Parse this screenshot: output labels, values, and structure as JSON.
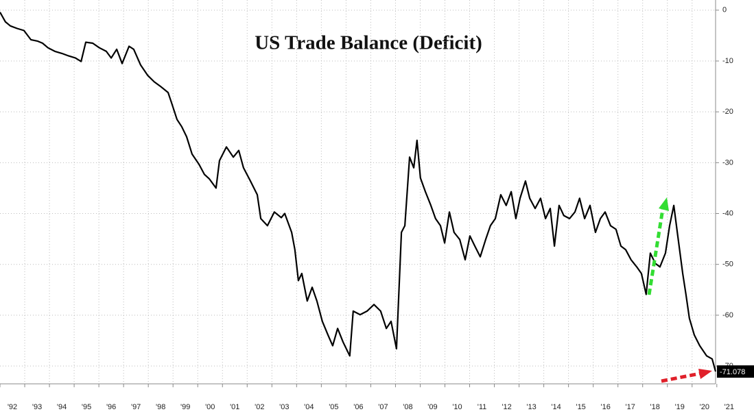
{
  "chart_data": {
    "type": "line",
    "title": "US Trade Balance (Deficit)",
    "x": [
      1992.0,
      1992.22,
      1992.42,
      1992.69,
      1992.97,
      1993.25,
      1993.53,
      1993.72,
      1993.94,
      1994.22,
      1994.5,
      1994.78,
      1995.05,
      1995.28,
      1995.47,
      1995.75,
      1996.02,
      1996.3,
      1996.5,
      1996.72,
      1996.94,
      1997.22,
      1997.41,
      1997.69,
      1997.97,
      1998.24,
      1998.52,
      1998.8,
      1998.94,
      1999.16,
      1999.35,
      1999.55,
      1999.77,
      2000.05,
      2000.27,
      2000.47,
      2000.74,
      2000.88,
      2001.16,
      2001.44,
      2001.66,
      2001.85,
      2002.13,
      2002.41,
      2002.55,
      2002.82,
      2003.1,
      2003.38,
      2003.52,
      2003.8,
      2003.93,
      2004.07,
      2004.21,
      2004.43,
      2004.63,
      2004.82,
      2005.04,
      2005.27,
      2005.46,
      2005.66,
      2005.88,
      2006.15,
      2006.29,
      2006.57,
      2006.85,
      2007.13,
      2007.4,
      2007.63,
      2007.82,
      2008.04,
      2008.24,
      2008.38,
      2008.57,
      2008.74,
      2008.87,
      2009.01,
      2009.21,
      2009.43,
      2009.62,
      2009.82,
      2009.99,
      2010.18,
      2010.37,
      2010.6,
      2010.82,
      2011.01,
      2011.21,
      2011.43,
      2011.65,
      2011.84,
      2012.04,
      2012.26,
      2012.48,
      2012.68,
      2012.87,
      2013.04,
      2013.26,
      2013.43,
      2013.65,
      2013.87,
      2014.07,
      2014.26,
      2014.43,
      2014.62,
      2014.81,
      2015.04,
      2015.26,
      2015.45,
      2015.65,
      2015.87,
      2016.09,
      2016.29,
      2016.48,
      2016.7,
      2016.92,
      2017.12,
      2017.31,
      2017.53,
      2017.76,
      2017.95,
      2018.14,
      2018.31,
      2018.51,
      2018.7,
      2018.92,
      2019.09,
      2019.26,
      2019.42,
      2019.62,
      2019.75,
      2019.89,
      2020.09,
      2020.31,
      2020.59,
      2020.81,
      2020.95
    ],
    "series": [
      {
        "color": "#000000",
        "values": [
          -0.4,
          -2.3,
          -3.1,
          -3.6,
          -4.0,
          -5.8,
          -6.1,
          -6.5,
          -7.4,
          -8.1,
          -8.5,
          -9.0,
          -9.4,
          -10.1,
          -6.3,
          -6.5,
          -7.4,
          -8.1,
          -9.4,
          -7.7,
          -10.5,
          -7.1,
          -7.7,
          -10.8,
          -12.8,
          -14.1,
          -15.1,
          -16.2,
          -18.2,
          -21.5,
          -22.9,
          -24.9,
          -28.3,
          -30.3,
          -32.3,
          -33.2,
          -35.0,
          -29.6,
          -26.9,
          -28.9,
          -27.6,
          -31.0,
          -33.6,
          -36.3,
          -41.0,
          -42.4,
          -39.7,
          -40.8,
          -40.0,
          -43.7,
          -47.1,
          -53.2,
          -51.8,
          -57.2,
          -54.5,
          -57.2,
          -61.2,
          -63.9,
          -66.0,
          -62.6,
          -65.3,
          -68.0,
          -59.2,
          -59.9,
          -59.2,
          -57.9,
          -59.2,
          -62.6,
          -61.2,
          -66.6,
          -43.7,
          -42.4,
          -28.9,
          -31.0,
          -25.6,
          -33.0,
          -35.7,
          -38.4,
          -41.0,
          -42.4,
          -45.8,
          -39.7,
          -43.7,
          -45.1,
          -49.1,
          -44.4,
          -46.4,
          -48.5,
          -45.1,
          -42.4,
          -41.0,
          -36.3,
          -38.4,
          -35.7,
          -41.0,
          -37.0,
          -33.6,
          -37.0,
          -39.0,
          -37.0,
          -41.0,
          -39.0,
          -46.4,
          -38.4,
          -40.4,
          -41.0,
          -39.7,
          -37.0,
          -41.0,
          -38.4,
          -43.7,
          -41.0,
          -39.7,
          -42.4,
          -43.1,
          -46.4,
          -47.1,
          -49.1,
          -50.5,
          -51.8,
          -55.9,
          -47.8,
          -49.8,
          -50.5,
          -47.8,
          -42.4,
          -38.4,
          -44.4,
          -51.8,
          -55.9,
          -60.6,
          -63.9,
          -66.0,
          -68.0,
          -68.6,
          -71.078
        ]
      }
    ],
    "xlim": [
      1992,
      2020.95
    ],
    "xticks": [
      {
        "value": 1992,
        "label": "'92"
      },
      {
        "value": 1993,
        "label": "'93"
      },
      {
        "value": 1994,
        "label": "'94"
      },
      {
        "value": 1995,
        "label": "'95"
      },
      {
        "value": 1996,
        "label": "'96"
      },
      {
        "value": 1997,
        "label": "'97"
      },
      {
        "value": 1998,
        "label": "'98"
      },
      {
        "value": 1999,
        "label": "'99"
      },
      {
        "value": 2000,
        "label": "'00"
      },
      {
        "value": 2001,
        "label": "'01"
      },
      {
        "value": 2002,
        "label": "'02"
      },
      {
        "value": 2003,
        "label": "'03"
      },
      {
        "value": 2004,
        "label": "'04"
      },
      {
        "value": 2005,
        "label": "'05"
      },
      {
        "value": 2006,
        "label": "'06"
      },
      {
        "value": 2007,
        "label": "'07"
      },
      {
        "value": 2008,
        "label": "'08"
      },
      {
        "value": 2009,
        "label": "'09"
      },
      {
        "value": 2010,
        "label": "'10"
      },
      {
        "value": 2011,
        "label": "'11"
      },
      {
        "value": 2012,
        "label": "'12"
      },
      {
        "value": 2013,
        "label": "'13"
      },
      {
        "value": 2014,
        "label": "'14"
      },
      {
        "value": 2015,
        "label": "'15"
      },
      {
        "value": 2016,
        "label": "'16"
      },
      {
        "value": 2017,
        "label": "'17"
      },
      {
        "value": 2018,
        "label": "'18"
      },
      {
        "value": 2019,
        "label": "'19"
      },
      {
        "value": 2020,
        "label": "'20"
      },
      {
        "value": 2021,
        "label": "'21"
      }
    ],
    "ylim": [
      -73.5,
      2
    ],
    "yticks": [
      0,
      -10,
      -20,
      -30,
      -40,
      -50,
      -60,
      -70
    ],
    "grid": true
  }
}
